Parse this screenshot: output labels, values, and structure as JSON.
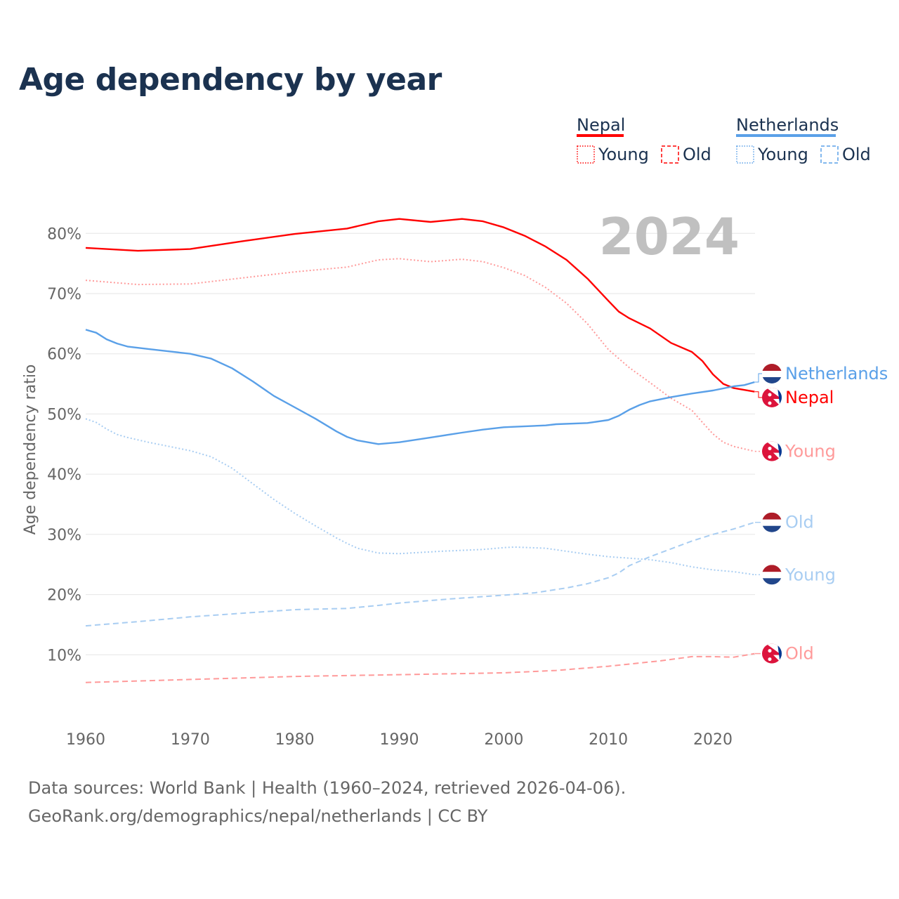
{
  "chart_data": {
    "type": "line",
    "title": "Age dependency by year",
    "ylabel": "Age dependency ratio",
    "xlabel": "",
    "xlim": [
      1960,
      2024
    ],
    "ylim": [
      0,
      85
    ],
    "x_ticks": [
      "1960",
      "1970",
      "1980",
      "1990",
      "2000",
      "2010",
      "2020"
    ],
    "y_ticks": [
      "10%",
      "20%",
      "30%",
      "40%",
      "50%",
      "60%",
      "70%",
      "80%"
    ],
    "year_label": "2024",
    "grid": true,
    "legend": {
      "placement": "top-right",
      "groups": [
        {
          "name": "Nepal",
          "color": "#ff0000",
          "items": [
            "Young",
            "Old"
          ]
        },
        {
          "name": "Netherlands",
          "color": "#5aa0e8",
          "items": [
            "Young",
            "Old"
          ]
        }
      ]
    },
    "series": [
      {
        "name": "Nepal",
        "label": "Nepal",
        "country": "nepal",
        "style": "solid",
        "color": "#ff0000",
        "x": [
          1960,
          1965,
          1970,
          1975,
          1980,
          1985,
          1988,
          1990,
          1993,
          1996,
          1998,
          2000,
          2002,
          2004,
          2006,
          2008,
          2010,
          2011,
          2012,
          2014,
          2016,
          2018,
          2019,
          2020,
          2021,
          2022,
          2024
        ],
        "values": [
          77.6,
          77.1,
          77.4,
          78.7,
          79.9,
          80.8,
          82.0,
          82.4,
          81.9,
          82.4,
          82.0,
          81.0,
          79.6,
          77.8,
          75.6,
          72.5,
          68.8,
          67.0,
          65.9,
          64.2,
          61.8,
          60.3,
          58.8,
          56.6,
          55.0,
          54.3,
          53.7
        ]
      },
      {
        "name": "Nepal Young",
        "label": "Young",
        "country": "nepal",
        "style": "dotted",
        "color": "#ff9a9a",
        "x": [
          1960,
          1965,
          1970,
          1975,
          1980,
          1985,
          1988,
          1990,
          1993,
          1996,
          1998,
          2000,
          2002,
          2004,
          2006,
          2008,
          2010,
          2012,
          2014,
          2016,
          2018,
          2019,
          2020,
          2021,
          2022,
          2024
        ],
        "values": [
          72.2,
          71.5,
          71.6,
          72.6,
          73.6,
          74.4,
          75.6,
          75.8,
          75.3,
          75.7,
          75.3,
          74.3,
          73.0,
          71.0,
          68.4,
          65.0,
          60.7,
          57.7,
          55.2,
          52.6,
          50.6,
          48.6,
          46.7,
          45.3,
          44.6,
          43.8
        ]
      },
      {
        "name": "Nepal Old",
        "label": "Old",
        "country": "nepal",
        "style": "dashed",
        "color": "#ff9a9a",
        "x": [
          1960,
          1970,
          1980,
          1990,
          2000,
          2005,
          2010,
          2015,
          2018,
          2020,
          2022,
          2024
        ],
        "values": [
          5.4,
          5.9,
          6.4,
          6.7,
          7.0,
          7.4,
          8.1,
          9.0,
          9.7,
          9.7,
          9.6,
          10.2
        ]
      },
      {
        "name": "Netherlands",
        "label": "Netherlands",
        "country": "netherlands",
        "style": "solid",
        "color": "#5aa0e8",
        "x": [
          1960,
          1961,
          1962,
          1963,
          1964,
          1966,
          1968,
          1970,
          1972,
          1974,
          1976,
          1978,
          1980,
          1982,
          1984,
          1985,
          1986,
          1988,
          1990,
          1993,
          1996,
          1998,
          2000,
          2004,
          2005,
          2008,
          2010,
          2011,
          2012,
          2013,
          2014,
          2016,
          2018,
          2020,
          2022,
          2023,
          2024
        ],
        "values": [
          64.0,
          63.5,
          62.4,
          61.7,
          61.2,
          60.8,
          60.4,
          60.0,
          59.2,
          57.6,
          55.4,
          53.0,
          51.1,
          49.2,
          47.1,
          46.2,
          45.6,
          45.0,
          45.3,
          46.1,
          46.9,
          47.4,
          47.8,
          48.1,
          48.3,
          48.5,
          49.0,
          49.7,
          50.7,
          51.5,
          52.1,
          52.8,
          53.4,
          53.9,
          54.6,
          54.8,
          55.3
        ]
      },
      {
        "name": "Netherlands Young",
        "label": "Young",
        "country": "netherlands",
        "style": "dotted",
        "color": "#a8cdf2",
        "x": [
          1960,
          1961,
          1962,
          1963,
          1964,
          1966,
          1968,
          1970,
          1972,
          1974,
          1976,
          1978,
          1980,
          1982,
          1984,
          1985,
          1986,
          1988,
          1990,
          1994,
          1998,
          2000,
          2001,
          2004,
          2006,
          2008,
          2010,
          2014,
          2016,
          2018,
          2020,
          2022,
          2024
        ],
        "values": [
          49.2,
          48.6,
          47.5,
          46.6,
          46.1,
          45.3,
          44.6,
          43.9,
          42.9,
          41.0,
          38.4,
          35.8,
          33.5,
          31.4,
          29.4,
          28.5,
          27.7,
          26.9,
          26.8,
          27.2,
          27.5,
          27.8,
          27.9,
          27.7,
          27.2,
          26.7,
          26.3,
          25.8,
          25.3,
          24.6,
          24.1,
          23.8,
          23.3
        ]
      },
      {
        "name": "Netherlands Old",
        "label": "Old",
        "country": "netherlands",
        "style": "dashed",
        "color": "#a8cdf2",
        "x": [
          1960,
          1965,
          1970,
          1975,
          1980,
          1985,
          1988,
          1990,
          1995,
          2000,
          2003,
          2006,
          2008,
          2010,
          2011,
          2012,
          2014,
          2016,
          2018,
          2020,
          2022,
          2024
        ],
        "values": [
          14.8,
          15.5,
          16.3,
          16.9,
          17.5,
          17.7,
          18.2,
          18.6,
          19.3,
          19.9,
          20.3,
          21.1,
          21.8,
          22.8,
          23.6,
          24.8,
          26.3,
          27.6,
          28.9,
          30.0,
          30.9,
          32.0
        ]
      }
    ]
  },
  "footer": {
    "line1": "Data sources: World Bank | Health (1960–2024, retrieved 2026-04-06).",
    "line2": "GeoRank.org/demographics/nepal/netherlands | CC BY"
  }
}
